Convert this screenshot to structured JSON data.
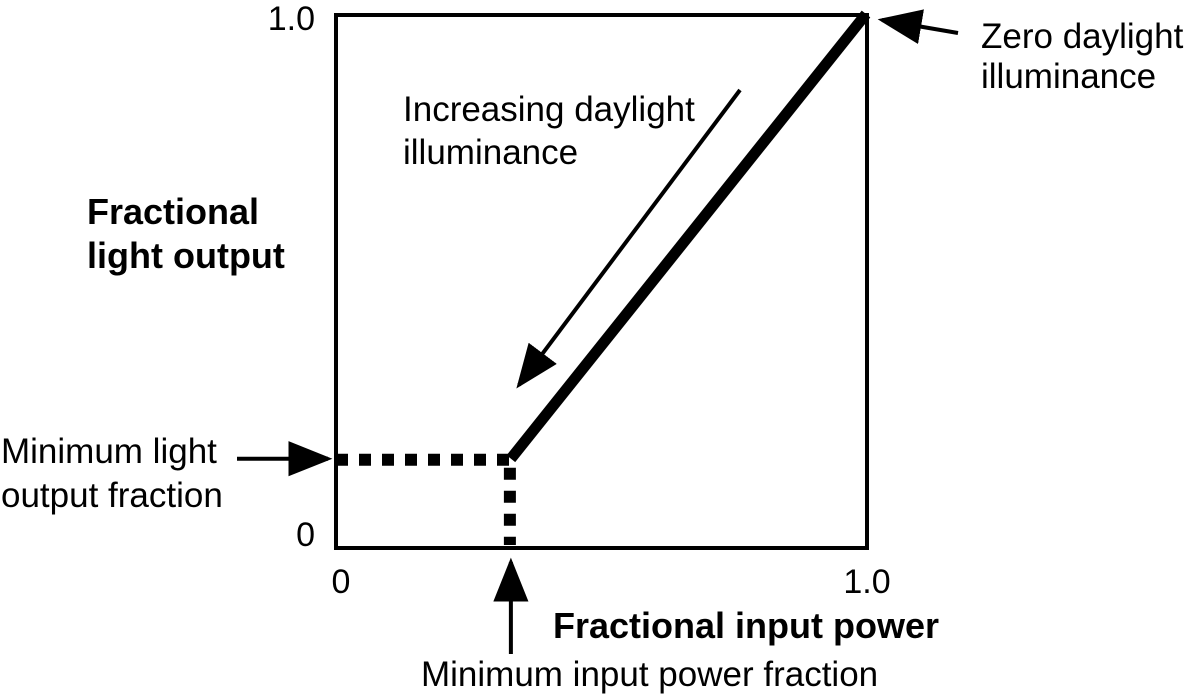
{
  "figure": {
    "y_axis_label": "Fractional\nlight output",
    "x_axis_label": "Fractional input power",
    "y_tick_top": "1.0",
    "y_tick_bottom": "0",
    "x_tick_left": "0",
    "x_tick_right": "1.0"
  },
  "annotations": {
    "increasing_daylight": "Increasing daylight\nilluminance",
    "zero_daylight": "Zero daylight\nilluminance",
    "min_light_output": "Minimum light\noutput fraction",
    "min_input_power": "Minimum input power fraction"
  },
  "colors": {
    "ink": "#000000",
    "background": "#ffffff"
  },
  "chart_data": {
    "type": "line",
    "title": "",
    "xlabel": "Fractional input power",
    "ylabel": "Fractional light output",
    "xlim": [
      0,
      1
    ],
    "ylim": [
      0,
      1
    ],
    "x_ticks": [
      {
        "value": 0,
        "label": "0"
      },
      {
        "value": 1,
        "label": "1.0"
      }
    ],
    "y_ticks": [
      {
        "value": 0,
        "label": "0"
      },
      {
        "value": 1,
        "label": "1.0"
      }
    ],
    "grid": false,
    "legend": false,
    "series": [
      {
        "name": "dimming-curve",
        "style": "solid-thick",
        "x": [
          0.33,
          1.0
        ],
        "y": [
          0.165,
          1.0
        ]
      }
    ],
    "reference_lines": [
      {
        "name": "minimum-light-output-level",
        "style": "dotted",
        "orientation": "horizontal",
        "y": 0.165,
        "x_from": 0,
        "x_to": 0.33
      },
      {
        "name": "minimum-input-power-level",
        "style": "dotted",
        "orientation": "vertical",
        "x": 0.33,
        "y_from": 0,
        "y_to": 0.165
      }
    ],
    "key_values": {
      "minimum_input_power_fraction": 0.33,
      "minimum_light_output_fraction": 0.165
    },
    "annotations": [
      {
        "text": "Increasing daylight illuminance",
        "arrow": "points down-left parallel to curve"
      },
      {
        "text": "Zero daylight illuminance",
        "arrow": "points at top-right corner (1.0, 1.0)"
      },
      {
        "text": "Minimum light output fraction",
        "arrow": "points at y-axis at minimum output level"
      },
      {
        "text": "Minimum input power fraction",
        "arrow": "points up at x-axis at minimum power level"
      }
    ]
  }
}
